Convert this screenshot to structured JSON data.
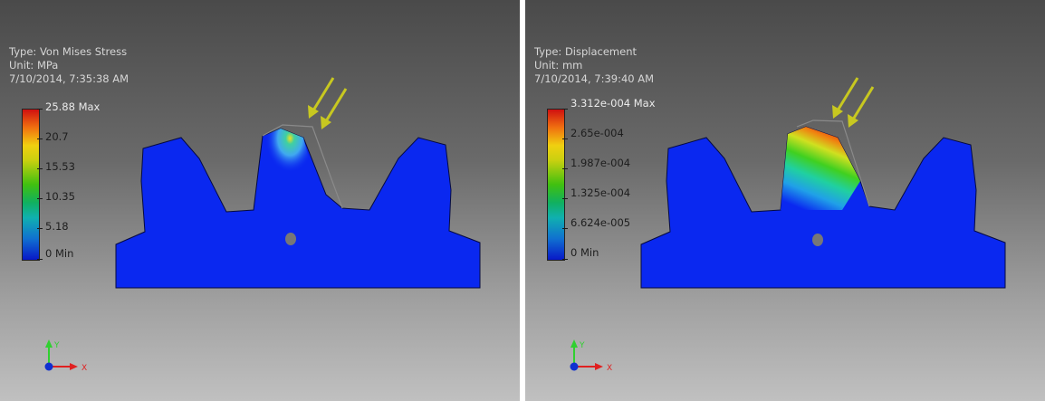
{
  "left_panel": {
    "type_label": "Type: Von Mises Stress",
    "unit_label": "Unit: MPa",
    "timestamp": "7/10/2014, 7:35:38 AM",
    "legend": [
      "25.88 Max",
      "20.7",
      "15.53",
      "10.35",
      "5.18",
      "0 Min"
    ],
    "axis_y": "Y",
    "axis_x": "X"
  },
  "right_panel": {
    "type_label": "Type: Displacement",
    "unit_label": "Unit: mm",
    "timestamp": "7/10/2014, 7:39:40 AM",
    "legend": [
      "3.312e-004 Max",
      "2.65e-004",
      "1.987e-004",
      "1.325e-004",
      "6.624e-005",
      "0 Min"
    ],
    "axis_y": "Y",
    "axis_x": "X"
  },
  "colors": {
    "gear_body": "#0a28f0",
    "load_arrow": "#c8c820",
    "scale_max": "#d01010",
    "scale_min": "#0818c8"
  },
  "icons": [
    "load-arrow-icon",
    "origin-triad-icon"
  ]
}
